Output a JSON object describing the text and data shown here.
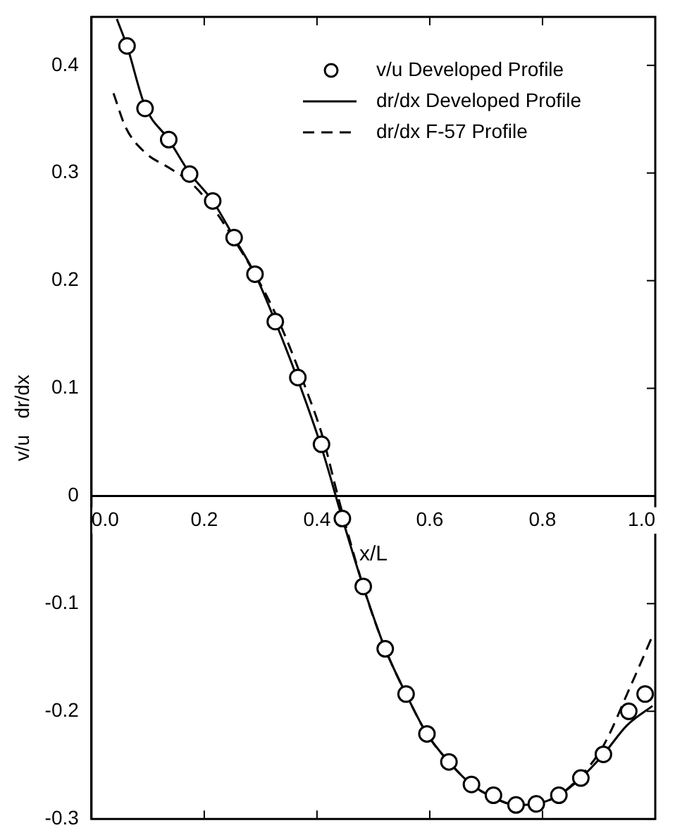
{
  "chart_data": {
    "type": "line",
    "xlabel": "x/L",
    "ylabel": "v/u   dr/dx",
    "xlim": [
      0,
      1.0
    ],
    "ylim": [
      -0.3,
      0.445
    ],
    "xticks": [
      {
        "value": 0,
        "label": "0.0"
      },
      0.2,
      0.4,
      0.6,
      0.8,
      {
        "value": 1.0,
        "label": "1.0"
      }
    ],
    "yticks": [
      -0.3,
      -0.2,
      -0.1,
      0,
      0.1,
      0.2,
      0.3,
      0.4
    ],
    "grid": false,
    "legend": "top right",
    "series": [
      {
        "name": "v/u Developed Profile",
        "type": "scatter",
        "marker": "circle",
        "color": "#000000",
        "x": [
          0.063,
          0.095,
          0.137,
          0.174,
          0.215,
          0.253,
          0.29,
          0.326,
          0.366,
          0.408,
          0.445,
          0.482,
          0.521,
          0.558,
          0.595,
          0.634,
          0.674,
          0.713,
          0.753,
          0.789,
          0.829,
          0.868,
          0.908,
          0.953,
          0.982
        ],
        "values": [
          0.418,
          0.36,
          0.331,
          0.299,
          0.274,
          0.24,
          0.206,
          0.162,
          0.11,
          0.048,
          -0.021,
          -0.084,
          -0.142,
          -0.184,
          -0.221,
          -0.247,
          -0.268,
          -0.278,
          -0.287,
          -0.286,
          -0.278,
          -0.262,
          -0.24,
          -0.2,
          -0.184
        ]
      },
      {
        "name": "dr/dx Developed Profile",
        "line_style": "solid",
        "color": "#000000",
        "x": [
          0.045,
          0.063,
          0.095,
          0.137,
          0.174,
          0.215,
          0.253,
          0.29,
          0.326,
          0.366,
          0.408,
          0.445,
          0.482,
          0.521,
          0.558,
          0.595,
          0.634,
          0.674,
          0.713,
          0.753,
          0.789,
          0.829,
          0.868,
          0.908,
          0.95,
          0.995
        ],
        "values": [
          0.443,
          0.418,
          0.362,
          0.331,
          0.3,
          0.274,
          0.24,
          0.206,
          0.162,
          0.108,
          0.045,
          -0.021,
          -0.084,
          -0.142,
          -0.184,
          -0.221,
          -0.247,
          -0.268,
          -0.28,
          -0.287,
          -0.286,
          -0.278,
          -0.262,
          -0.24,
          -0.213,
          -0.195
        ]
      },
      {
        "name": "dr/dx F-57 Profile",
        "line_style": "dashed",
        "color": "#000000",
        "x": [
          0.039,
          0.061,
          0.095,
          0.137,
          0.174,
          0.215,
          0.253,
          0.29,
          0.33,
          0.38,
          0.41,
          0.437,
          0.482,
          0.521,
          0.558,
          0.595,
          0.634,
          0.674,
          0.713,
          0.753,
          0.789,
          0.829,
          0.868,
          0.908,
          0.955,
          0.995
        ],
        "values": [
          0.374,
          0.342,
          0.319,
          0.305,
          0.292,
          0.268,
          0.238,
          0.206,
          0.165,
          0.1,
          0.055,
          0,
          -0.084,
          -0.142,
          -0.184,
          -0.221,
          -0.247,
          -0.268,
          -0.28,
          -0.287,
          -0.286,
          -0.278,
          -0.26,
          -0.232,
          -0.178,
          -0.13
        ]
      }
    ]
  }
}
